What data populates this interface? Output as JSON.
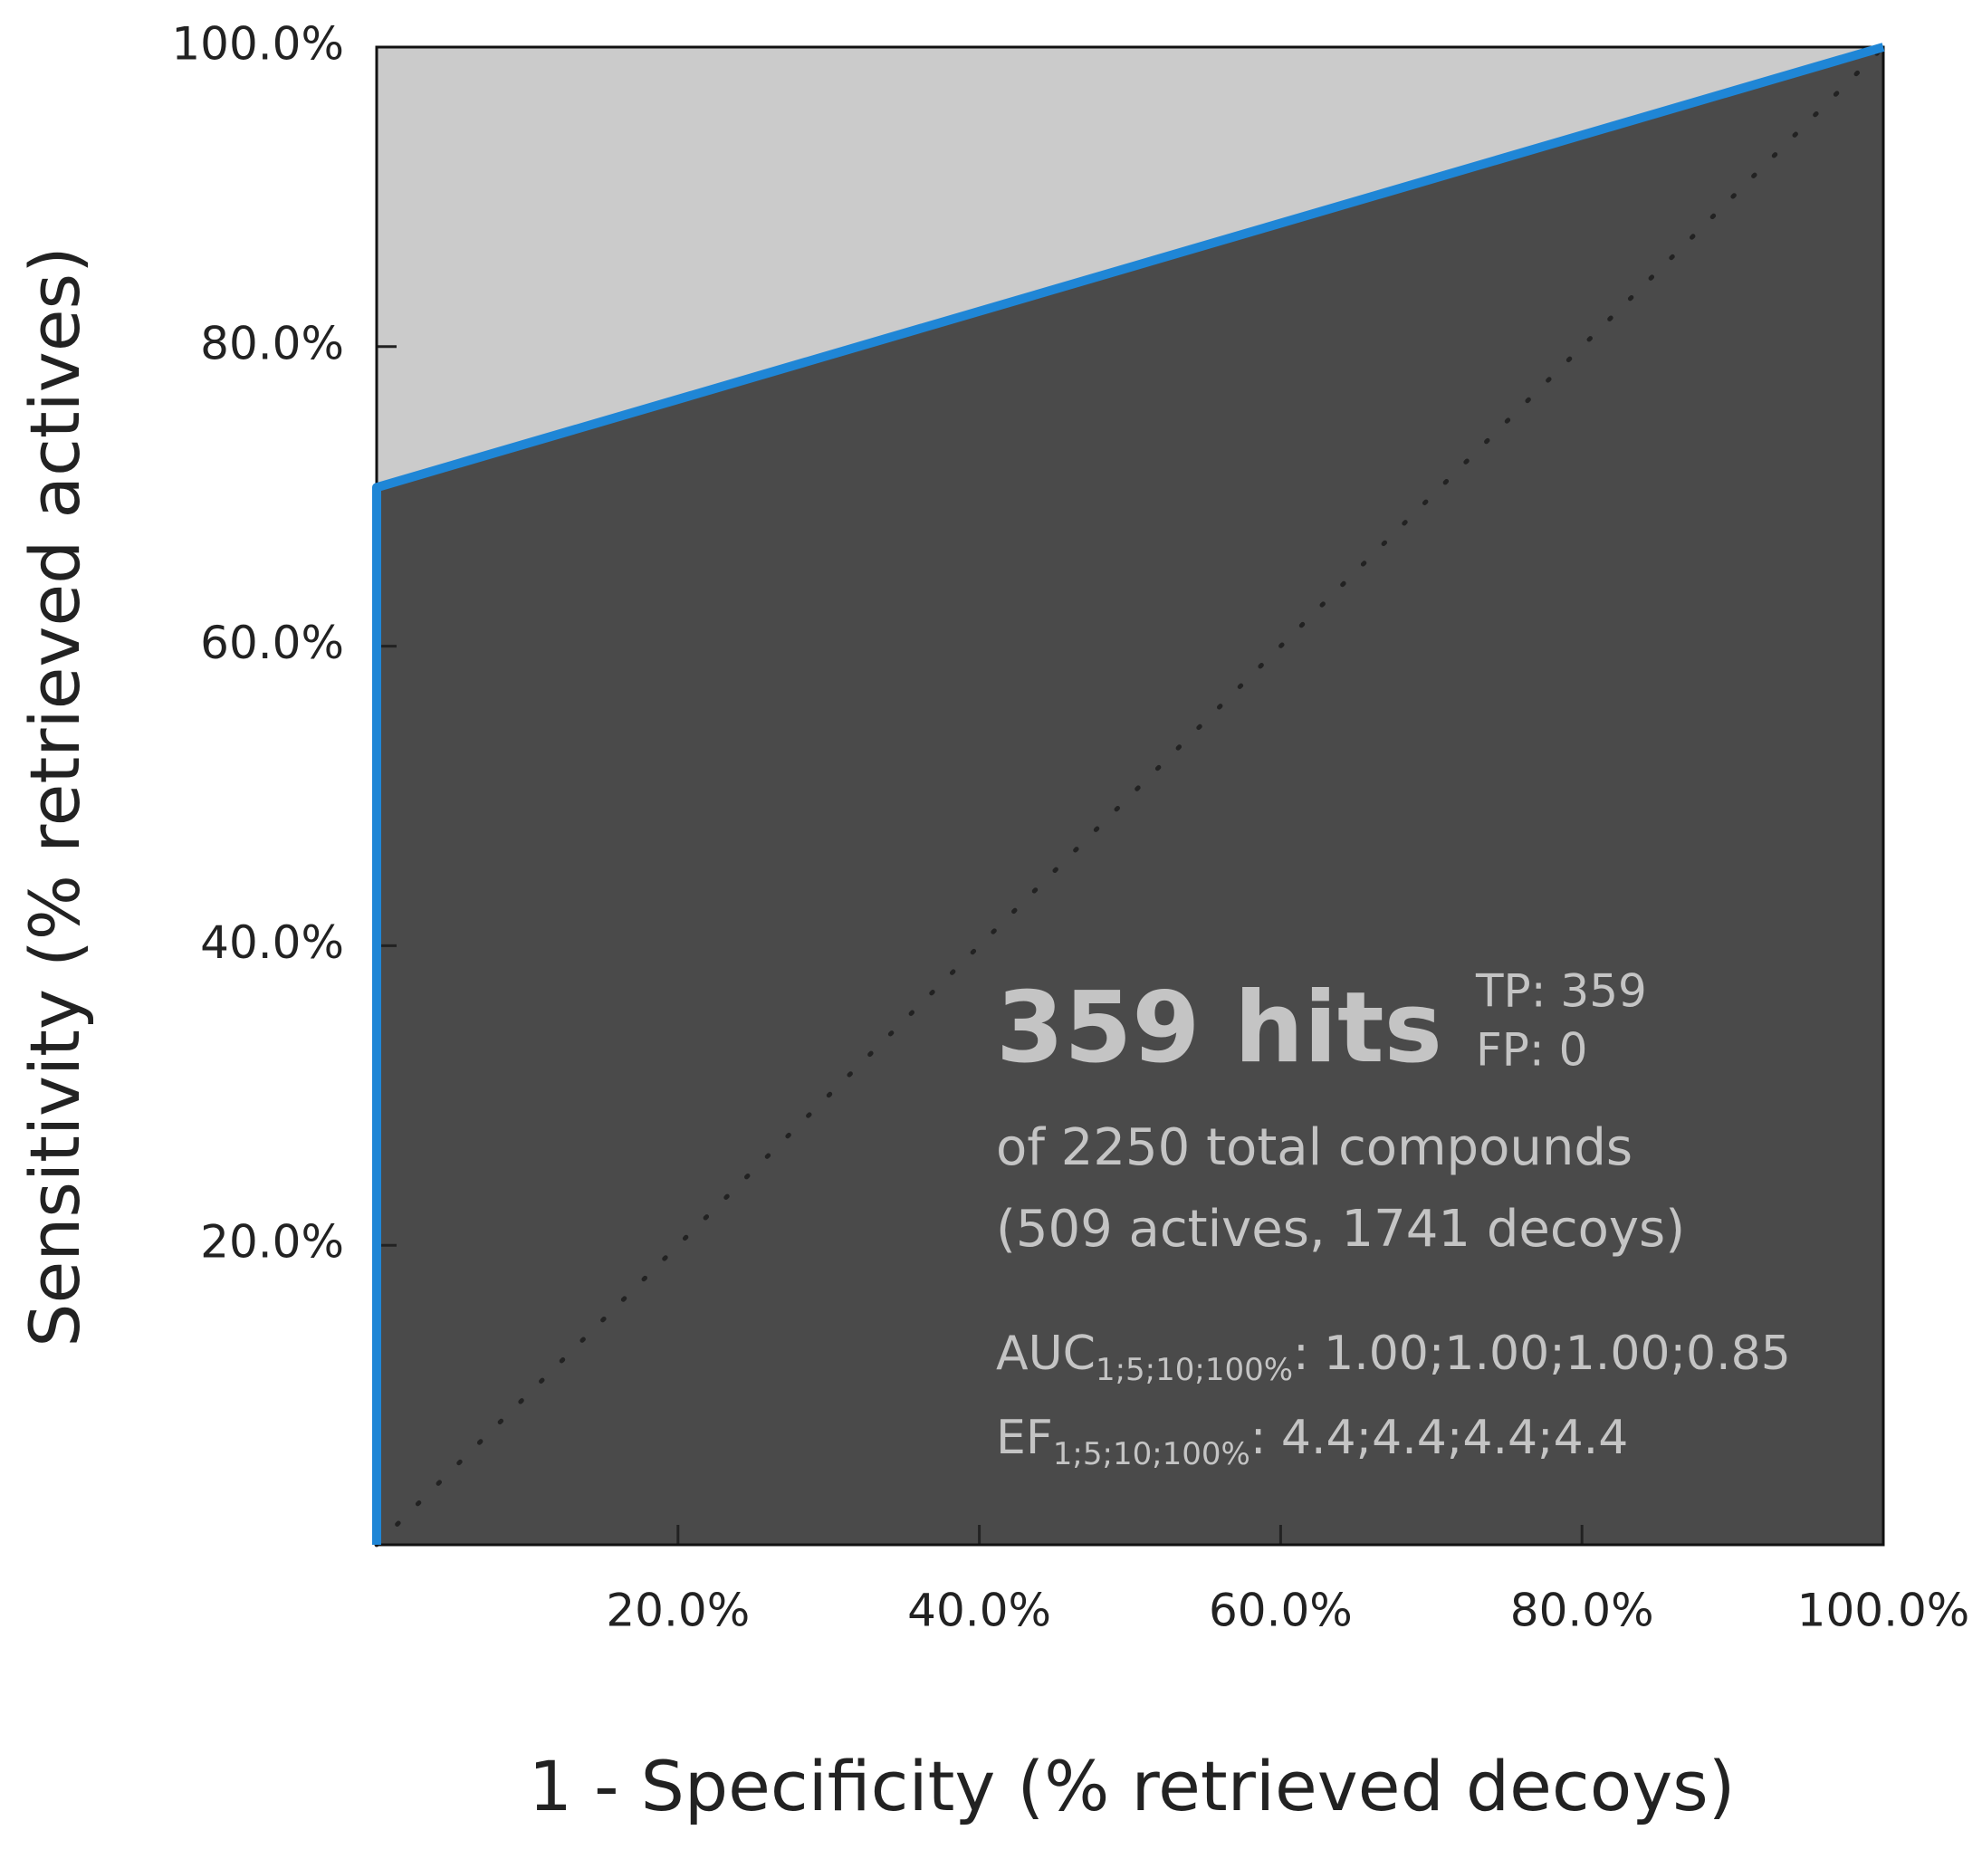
{
  "chart_data": {
    "type": "line",
    "x_label": "1 - Specificity (% retrieved decoys)",
    "y_label": "Sensitivity (% retrieved actives)",
    "x": [
      0,
      0,
      100
    ],
    "series": [
      {
        "values": [
          0,
          70.6,
          100
        ],
        "color": "#1f86d6"
      }
    ],
    "fill_below": "#4a4a4a",
    "fill_above": "#cbcbcb",
    "diagonal": true,
    "xlim": [
      0,
      100
    ],
    "ylim": [
      0,
      100
    ],
    "xticks": [
      {
        "value": 20,
        "label": "20.0%"
      },
      {
        "value": 40,
        "label": "40.0%"
      },
      {
        "value": 60,
        "label": "60.0%"
      },
      {
        "value": 80,
        "label": "80.0%"
      },
      {
        "value": 100,
        "label": "100.0%"
      }
    ],
    "yticks": [
      {
        "value": 20,
        "label": "20.0%"
      },
      {
        "value": 40,
        "label": "40.0%"
      },
      {
        "value": 60,
        "label": "60.0%"
      },
      {
        "value": 80,
        "label": "80.0%"
      },
      {
        "value": 100,
        "label": "100.0%"
      }
    ],
    "annotations": {
      "headline": "359 hits",
      "tp": "TP: 359",
      "fp": "FP: 0",
      "total": "of 2250 total compounds",
      "breakdown": "(509 actives, 1741 decoys)",
      "auc": {
        "label": "AUC",
        "subscript": "1;5;10;100%",
        "values": ": 1.00;1.00;1.00;0.85"
      },
      "ef": {
        "label": "EF",
        "subscript": "1;5;10;100%",
        "values": ": 4.4;4.4;4.4;4.4"
      }
    }
  }
}
